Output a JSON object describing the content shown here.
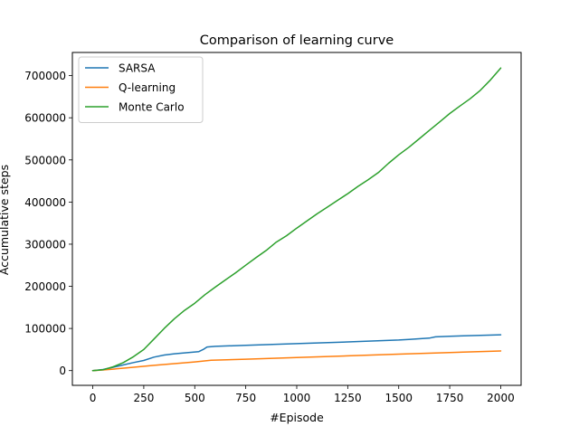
{
  "chart_data": {
    "type": "line",
    "title": "Comparison of learning curve",
    "xlabel": "#Episode",
    "ylabel": "Accumulative steps",
    "xlim": [
      -100,
      2100
    ],
    "ylim": [
      -35000,
      755000
    ],
    "xticks": [
      0,
      250,
      500,
      750,
      1000,
      1250,
      1500,
      1750,
      2000
    ],
    "yticks": [
      0,
      100000,
      200000,
      300000,
      400000,
      500000,
      600000,
      700000
    ],
    "grid": false,
    "legend_position": "upper-left",
    "series": [
      {
        "name": "SARSA",
        "color": "#1f77b4",
        "points": [
          [
            0,
            0
          ],
          [
            50,
            2500
          ],
          [
            100,
            8000
          ],
          [
            150,
            13500
          ],
          [
            200,
            19000
          ],
          [
            250,
            24000
          ],
          [
            300,
            32000
          ],
          [
            350,
            37000
          ],
          [
            400,
            40000
          ],
          [
            450,
            42000
          ],
          [
            520,
            45000
          ],
          [
            545,
            51000
          ],
          [
            560,
            56000
          ],
          [
            600,
            57500
          ],
          [
            750,
            60000
          ],
          [
            1000,
            64000
          ],
          [
            1250,
            68000
          ],
          [
            1500,
            72500
          ],
          [
            1550,
            74000
          ],
          [
            1650,
            77000
          ],
          [
            1680,
            80000
          ],
          [
            1750,
            81500
          ],
          [
            2000,
            85000
          ]
        ]
      },
      {
        "name": "Q-learning",
        "color": "#ff7f0e",
        "points": [
          [
            0,
            0
          ],
          [
            50,
            1500
          ],
          [
            100,
            3500
          ],
          [
            200,
            8000
          ],
          [
            300,
            12500
          ],
          [
            400,
            16500
          ],
          [
            500,
            20500
          ],
          [
            580,
            24500
          ],
          [
            750,
            27000
          ],
          [
            1000,
            31000
          ],
          [
            1250,
            35000
          ],
          [
            1500,
            39000
          ],
          [
            1750,
            43000
          ],
          [
            2000,
            46500
          ]
        ]
      },
      {
        "name": "Monte Carlo",
        "color": "#2ca02c",
        "points": [
          [
            0,
            0
          ],
          [
            50,
            2000
          ],
          [
            100,
            9000
          ],
          [
            150,
            19000
          ],
          [
            200,
            33000
          ],
          [
            250,
            50000
          ],
          [
            300,
            75000
          ],
          [
            350,
            100000
          ],
          [
            400,
            123000
          ],
          [
            450,
            143000
          ],
          [
            500,
            160000
          ],
          [
            550,
            180000
          ],
          [
            600,
            198000
          ],
          [
            650,
            215000
          ],
          [
            700,
            232000
          ],
          [
            750,
            250000
          ],
          [
            800,
            268000
          ],
          [
            850,
            285000
          ],
          [
            900,
            305000
          ],
          [
            950,
            320000
          ],
          [
            1000,
            338000
          ],
          [
            1050,
            355000
          ],
          [
            1100,
            372000
          ],
          [
            1150,
            388000
          ],
          [
            1200,
            404000
          ],
          [
            1250,
            420000
          ],
          [
            1300,
            437000
          ],
          [
            1350,
            453000
          ],
          [
            1400,
            470000
          ],
          [
            1450,
            492000
          ],
          [
            1500,
            512000
          ],
          [
            1550,
            530000
          ],
          [
            1600,
            550000
          ],
          [
            1650,
            570000
          ],
          [
            1700,
            590000
          ],
          [
            1750,
            610000
          ],
          [
            1800,
            628000
          ],
          [
            1850,
            645000
          ],
          [
            1900,
            665000
          ],
          [
            1950,
            690000
          ],
          [
            2000,
            718000
          ]
        ]
      }
    ]
  }
}
